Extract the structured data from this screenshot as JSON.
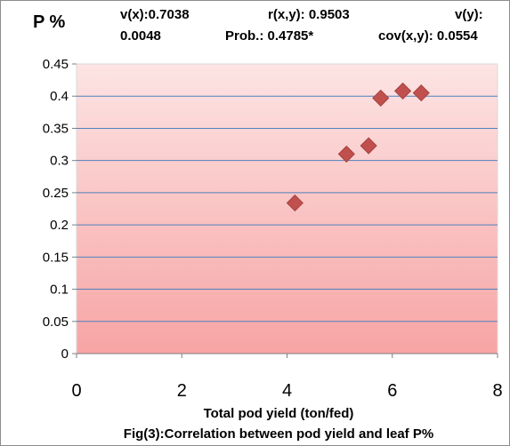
{
  "chart_data": {
    "type": "scatter",
    "title": "",
    "ylabel": "P %",
    "xlabel": "Total pod yield (ton/fed)",
    "caption": "Fig(3):Correlation between pod yield and leaf P%",
    "stats": {
      "vx_line1": "v(x):0.7038",
      "vx_line2": "0.0048",
      "rxy": "r(x,y): 0.9503",
      "prob": "Prob.: 0.4785*",
      "vy": "v(y):",
      "cov": "cov(x,y): 0.0554"
    },
    "xlim": [
      0,
      8
    ],
    "ylim": [
      0,
      0.45
    ],
    "x_ticks": [
      "0",
      "2",
      "4",
      "6",
      "8"
    ],
    "y_ticks": [
      "0",
      "0.05",
      "0.1",
      "0.15",
      "0.2",
      "0.25",
      "0.3",
      "0.35",
      "0.4",
      "0.45"
    ],
    "grid": true,
    "marker_color": "#c0504d",
    "points": [
      {
        "x": 4.15,
        "y": 0.234
      },
      {
        "x": 5.13,
        "y": 0.31
      },
      {
        "x": 5.55,
        "y": 0.323
      },
      {
        "x": 5.78,
        "y": 0.397
      },
      {
        "x": 6.2,
        "y": 0.408
      },
      {
        "x": 6.55,
        "y": 0.405
      }
    ]
  }
}
